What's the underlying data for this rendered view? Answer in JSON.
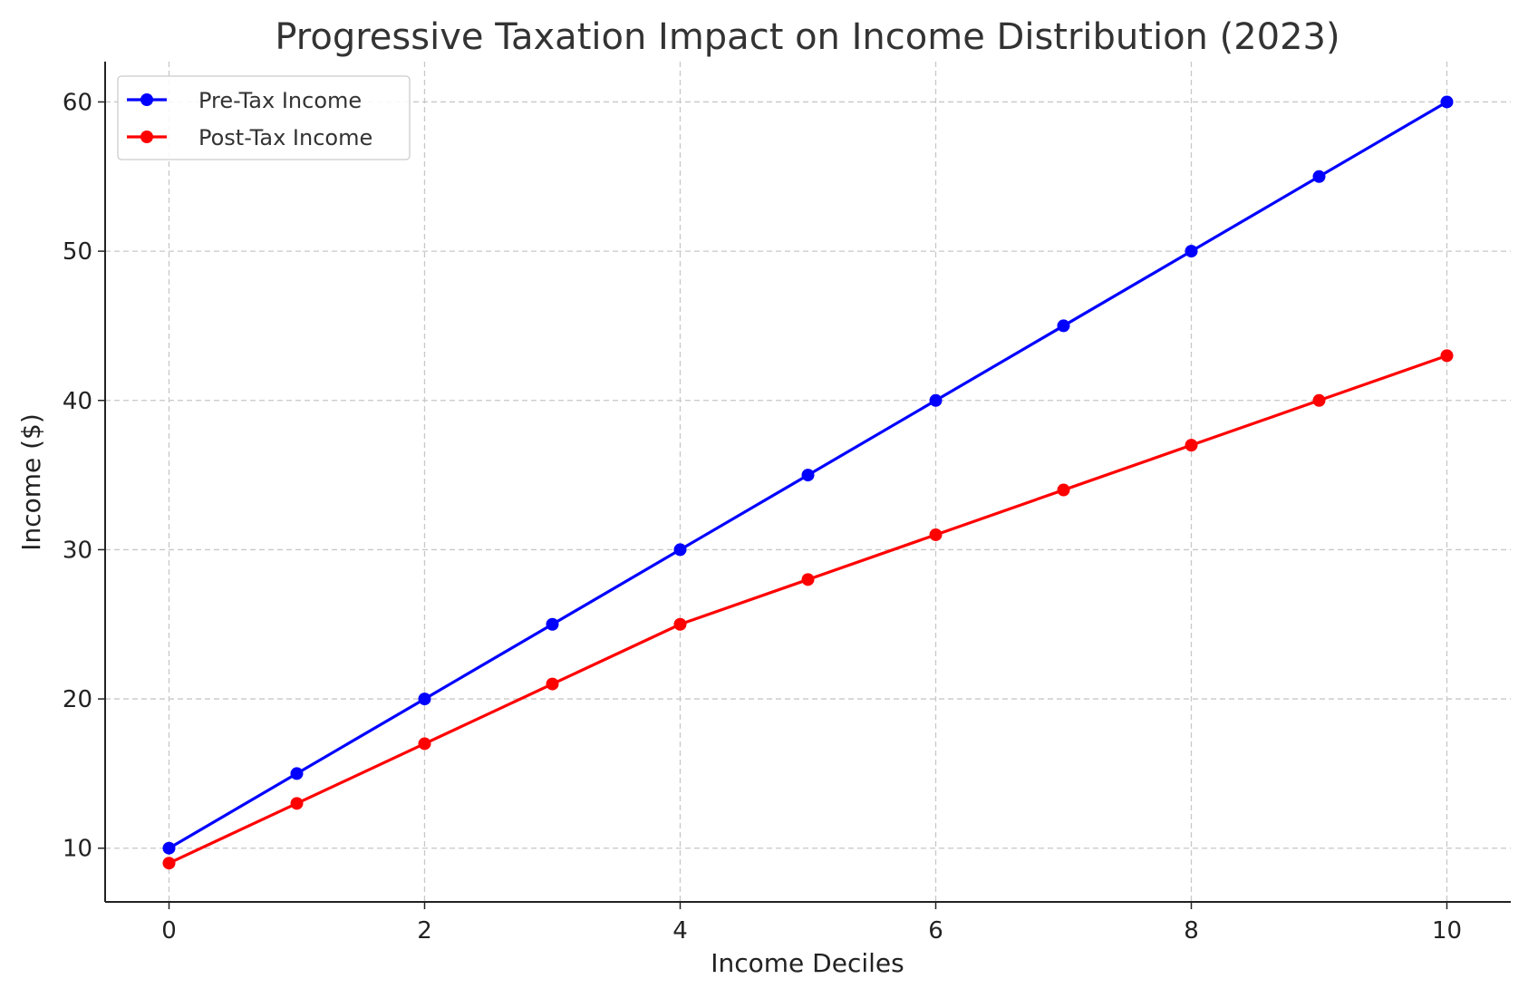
{
  "chart_data": {
    "type": "line",
    "title": "Progressive Taxation Impact on Income Distribution (2023)",
    "xlabel": "Income Deciles",
    "ylabel": "Income ($)",
    "x": [
      0,
      1,
      2,
      3,
      4,
      5,
      6,
      7,
      8,
      9,
      10
    ],
    "xticks": [
      0,
      2,
      4,
      6,
      8,
      10
    ],
    "yticks": [
      10,
      20,
      30,
      40,
      50,
      60
    ],
    "xlim": [
      -0.5,
      10.5
    ],
    "ylim": [
      6.4,
      62.7
    ],
    "grid": true,
    "legend": "top-left",
    "series": [
      {
        "name": "Pre-Tax Income",
        "color": "#0000ff",
        "marker": "circle",
        "values": [
          10,
          15,
          20,
          25,
          30,
          35,
          40,
          45,
          50,
          55,
          60
        ]
      },
      {
        "name": "Post-Tax Income",
        "color": "#ff0000",
        "marker": "circle",
        "values": [
          9,
          13,
          17,
          21,
          25,
          28,
          31,
          34,
          37,
          40,
          43
        ]
      }
    ]
  }
}
